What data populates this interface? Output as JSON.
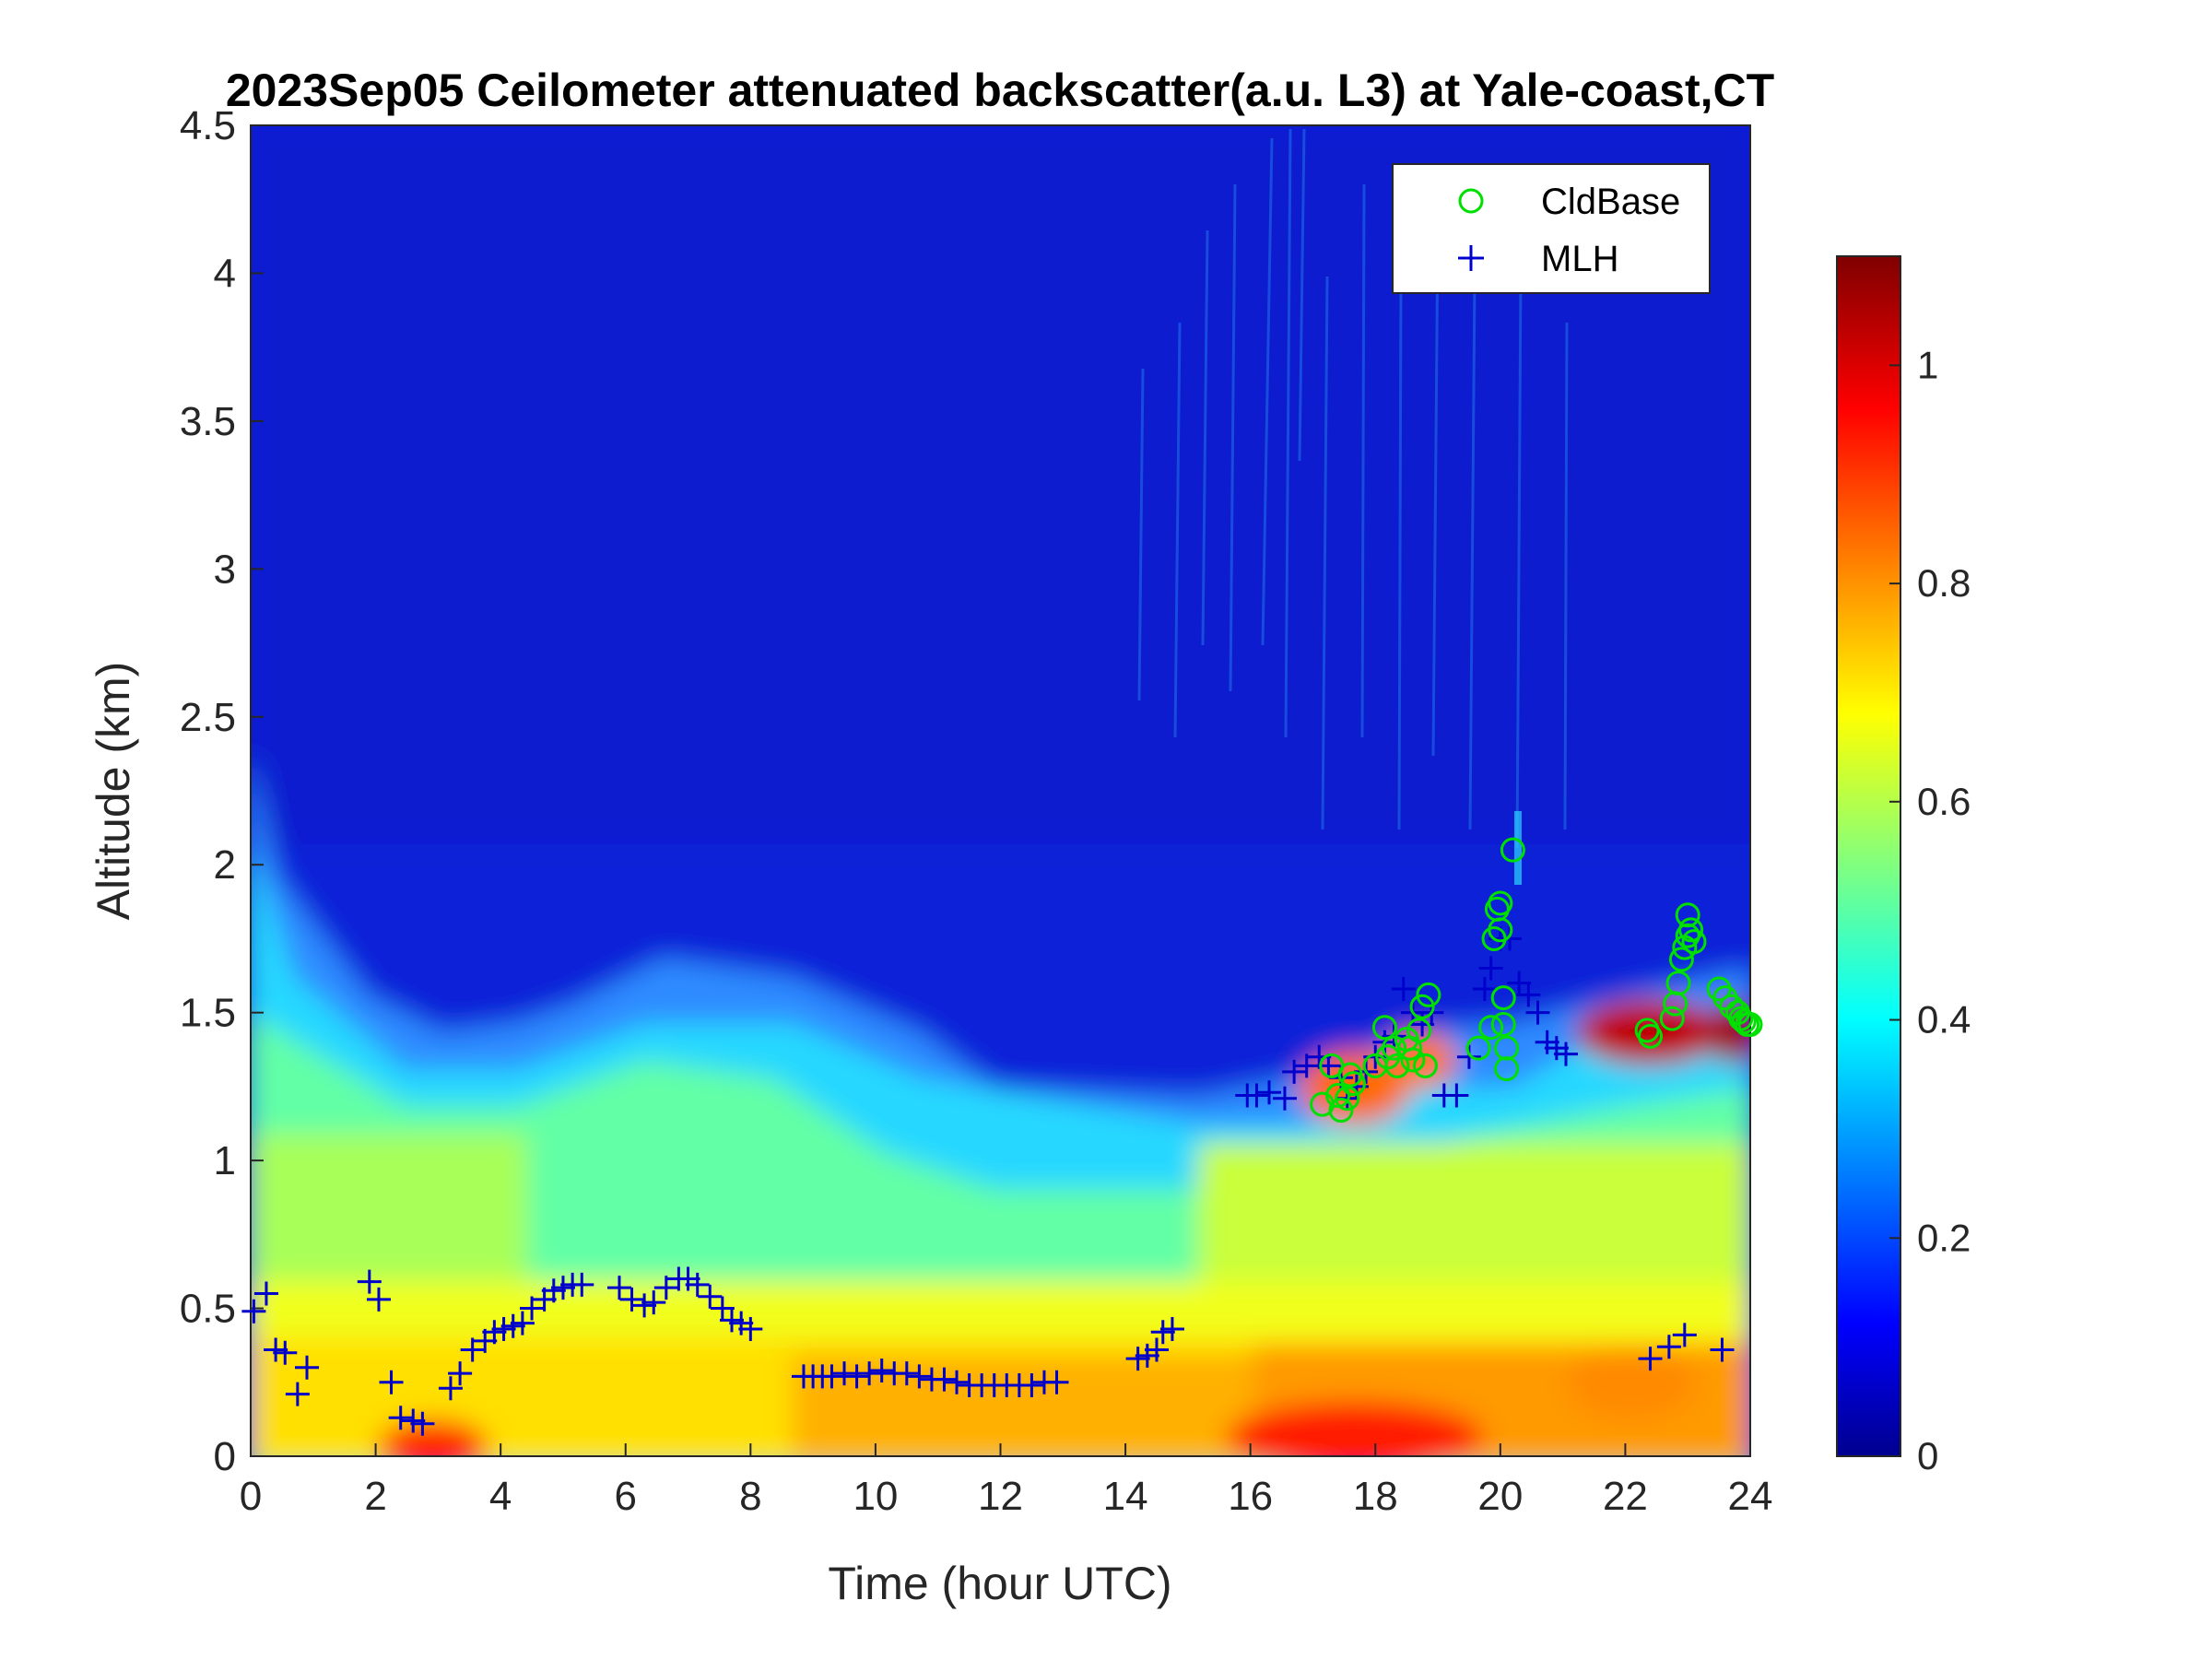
{
  "chart_data": {
    "type": "heatmap",
    "title": "2023Sep05 Ceilometer attenuated backscatter(a.u. L3) at Yale-coast,CT",
    "xlabel": "Time (hour UTC)",
    "ylabel": "Altitude (km)",
    "xlim": [
      0,
      24
    ],
    "ylim": [
      0,
      4.5
    ],
    "xticks": [
      0,
      2,
      4,
      6,
      8,
      10,
      12,
      14,
      16,
      18,
      20,
      22,
      24
    ],
    "yticks": [
      0,
      0.5,
      1,
      1.5,
      2,
      2.5,
      3,
      3.5,
      4,
      4.5
    ],
    "colorbar": {
      "colormap": "jet",
      "range": [
        0,
        1.1
      ],
      "ticks": [
        0,
        0.2,
        0.4,
        0.6,
        0.8,
        1
      ]
    },
    "legend": {
      "position": "top-right",
      "entries": [
        {
          "label": "CldBase",
          "marker": "circle",
          "color": "#00e000"
        },
        {
          "label": "MLH",
          "marker": "plus",
          "color": "#0000cc"
        }
      ]
    },
    "series": [
      {
        "name": "MLH",
        "marker": "plus",
        "color": "#0000cc",
        "points": [
          [
            0.05,
            0.49
          ],
          [
            0.25,
            0.55
          ],
          [
            0.4,
            0.36
          ],
          [
            0.55,
            0.35
          ],
          [
            0.75,
            0.21
          ],
          [
            0.9,
            0.3
          ],
          [
            1.9,
            0.59
          ],
          [
            2.05,
            0.53
          ],
          [
            2.25,
            0.25
          ],
          [
            2.4,
            0.13
          ],
          [
            2.6,
            0.12
          ],
          [
            2.75,
            0.11
          ],
          [
            3.2,
            0.23
          ],
          [
            3.35,
            0.28
          ],
          [
            3.55,
            0.36
          ],
          [
            3.75,
            0.39
          ],
          [
            3.9,
            0.42
          ],
          [
            4.05,
            0.43
          ],
          [
            4.2,
            0.44
          ],
          [
            4.35,
            0.45
          ],
          [
            4.5,
            0.5
          ],
          [
            4.7,
            0.53
          ],
          [
            4.85,
            0.56
          ],
          [
            5.0,
            0.57
          ],
          [
            5.15,
            0.58
          ],
          [
            5.3,
            0.58
          ],
          [
            5.9,
            0.57
          ],
          [
            6.1,
            0.53
          ],
          [
            6.3,
            0.51
          ],
          [
            6.45,
            0.52
          ],
          [
            6.65,
            0.57
          ],
          [
            6.85,
            0.6
          ],
          [
            7.0,
            0.6
          ],
          [
            7.15,
            0.58
          ],
          [
            7.35,
            0.54
          ],
          [
            7.55,
            0.5
          ],
          [
            7.7,
            0.46
          ],
          [
            7.85,
            0.45
          ],
          [
            8.0,
            0.43
          ],
          [
            8.85,
            0.27
          ],
          [
            9.0,
            0.27
          ],
          [
            9.15,
            0.27
          ],
          [
            9.3,
            0.27
          ],
          [
            9.5,
            0.28
          ],
          [
            9.7,
            0.27
          ],
          [
            9.9,
            0.28
          ],
          [
            10.1,
            0.29
          ],
          [
            10.3,
            0.28
          ],
          [
            10.5,
            0.28
          ],
          [
            10.7,
            0.27
          ],
          [
            10.9,
            0.26
          ],
          [
            11.1,
            0.26
          ],
          [
            11.3,
            0.25
          ],
          [
            11.5,
            0.24
          ],
          [
            11.7,
            0.24
          ],
          [
            11.9,
            0.24
          ],
          [
            12.1,
            0.24
          ],
          [
            12.3,
            0.24
          ],
          [
            12.5,
            0.24
          ],
          [
            12.7,
            0.25
          ],
          [
            12.9,
            0.25
          ],
          [
            14.2,
            0.33
          ],
          [
            14.35,
            0.34
          ],
          [
            14.5,
            0.36
          ],
          [
            14.6,
            0.42
          ],
          [
            14.75,
            0.43
          ],
          [
            15.95,
            1.22
          ],
          [
            16.1,
            1.22
          ],
          [
            16.3,
            1.23
          ],
          [
            16.55,
            1.21
          ],
          [
            16.7,
            1.3
          ],
          [
            16.9,
            1.32
          ],
          [
            17.1,
            1.35
          ],
          [
            17.25,
            1.32
          ],
          [
            17.45,
            1.28
          ],
          [
            17.55,
            1.21
          ],
          [
            17.7,
            1.25
          ],
          [
            17.85,
            1.3
          ],
          [
            18.0,
            1.35
          ],
          [
            18.15,
            1.4
          ],
          [
            18.3,
            1.42
          ],
          [
            18.45,
            1.58
          ],
          [
            18.6,
            1.5
          ],
          [
            18.75,
            1.46
          ],
          [
            18.9,
            1.5
          ],
          [
            19.1,
            1.22
          ],
          [
            19.3,
            1.22
          ],
          [
            19.5,
            1.35
          ],
          [
            19.75,
            1.58
          ],
          [
            19.85,
            1.65
          ],
          [
            20.0,
            1.75
          ],
          [
            20.15,
            1.75
          ],
          [
            20.3,
            1.6
          ],
          [
            20.45,
            1.56
          ],
          [
            20.6,
            1.5
          ],
          [
            20.75,
            1.4
          ],
          [
            20.9,
            1.38
          ],
          [
            21.05,
            1.36
          ],
          [
            22.4,
            0.33
          ],
          [
            22.7,
            0.37
          ],
          [
            22.95,
            0.41
          ],
          [
            23.55,
            0.36
          ]
        ]
      },
      {
        "name": "CldBase",
        "marker": "circle",
        "color": "#00e000",
        "points": [
          [
            17.15,
            1.19
          ],
          [
            17.3,
            1.32
          ],
          [
            17.4,
            1.22
          ],
          [
            17.45,
            1.17
          ],
          [
            17.55,
            1.21
          ],
          [
            17.6,
            1.29
          ],
          [
            17.65,
            1.26
          ],
          [
            18.0,
            1.32
          ],
          [
            18.15,
            1.45
          ],
          [
            18.2,
            1.35
          ],
          [
            18.3,
            1.38
          ],
          [
            18.35,
            1.32
          ],
          [
            18.5,
            1.41
          ],
          [
            18.55,
            1.38
          ],
          [
            18.6,
            1.34
          ],
          [
            18.7,
            1.44
          ],
          [
            18.75,
            1.52
          ],
          [
            18.8,
            1.32
          ],
          [
            18.85,
            1.56
          ],
          [
            19.65,
            1.38
          ],
          [
            19.85,
            1.45
          ],
          [
            19.9,
            1.75
          ],
          [
            19.95,
            1.85
          ],
          [
            20.0,
            1.87
          ],
          [
            20.0,
            1.78
          ],
          [
            20.05,
            1.55
          ],
          [
            20.05,
            1.46
          ],
          [
            20.1,
            1.38
          ],
          [
            20.1,
            1.31
          ],
          [
            20.2,
            2.05
          ],
          [
            22.35,
            1.44
          ],
          [
            22.4,
            1.42
          ],
          [
            22.75,
            1.48
          ],
          [
            22.8,
            1.53
          ],
          [
            22.85,
            1.6
          ],
          [
            22.9,
            1.68
          ],
          [
            22.95,
            1.72
          ],
          [
            23.0,
            1.76
          ],
          [
            23.0,
            1.83
          ],
          [
            23.05,
            1.78
          ],
          [
            23.1,
            1.74
          ],
          [
            23.5,
            1.58
          ],
          [
            23.6,
            1.55
          ],
          [
            23.7,
            1.52
          ],
          [
            23.8,
            1.5
          ],
          [
            23.85,
            1.48
          ],
          [
            23.9,
            1.47
          ],
          [
            23.95,
            1.46
          ],
          [
            24.0,
            1.46
          ]
        ]
      }
    ]
  }
}
